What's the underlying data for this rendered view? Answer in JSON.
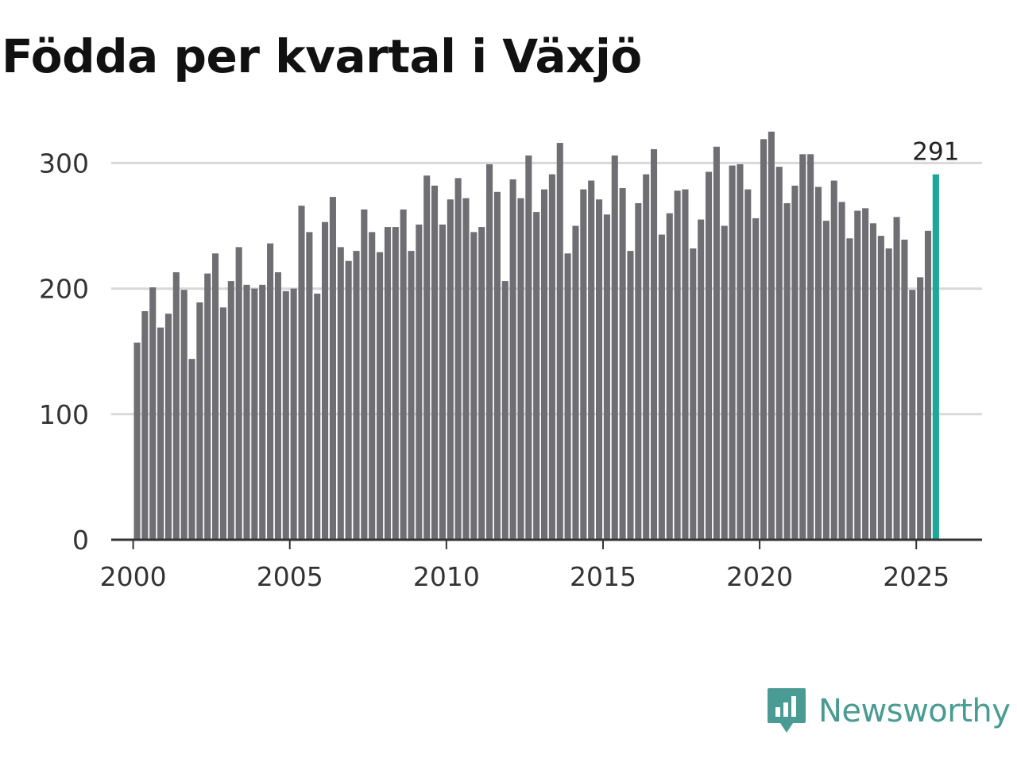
{
  "title": "Födda per kvartal i Växjö",
  "brand": {
    "name": "Newsworthy",
    "icon": "newsworthy-logo-icon",
    "color": "#4a9b93"
  },
  "colors": {
    "bar": "#6e6e73",
    "highlight": "#1aa89a",
    "grid": "#d9d9d9",
    "axis": "#333333"
  },
  "chart_data": {
    "type": "bar",
    "title": "Födda per kvartal i Växjö",
    "xlabel": "",
    "ylabel": "",
    "ylim": [
      0,
      335
    ],
    "xlim": [
      1999.3,
      2027.1
    ],
    "yticks": [
      0,
      100,
      200,
      300
    ],
    "xticks": [
      2000,
      2005,
      2010,
      2015,
      2020,
      2025
    ],
    "start_year": 2000,
    "values": [
      157,
      182,
      201,
      169,
      180,
      213,
      199,
      144,
      189,
      212,
      228,
      185,
      206,
      233,
      203,
      200,
      203,
      236,
      213,
      198,
      200,
      266,
      245,
      196,
      253,
      273,
      233,
      222,
      230,
      263,
      245,
      229,
      249,
      249,
      263,
      230,
      251,
      290,
      282,
      251,
      271,
      288,
      272,
      245,
      249,
      299,
      277,
      206,
      287,
      272,
      306,
      261,
      279,
      291,
      316,
      228,
      250,
      279,
      286,
      271,
      259,
      306,
      280,
      230,
      268,
      291,
      311,
      243,
      260,
      278,
      279,
      232,
      255,
      293,
      313,
      250,
      298,
      299,
      279,
      256,
      319,
      325,
      297,
      268,
      282,
      307,
      307,
      281,
      254,
      286,
      269,
      240,
      262,
      264,
      252,
      242,
      232,
      257,
      239,
      199,
      209,
      246,
      291
    ],
    "highlight_last": true,
    "last_label": "291"
  }
}
